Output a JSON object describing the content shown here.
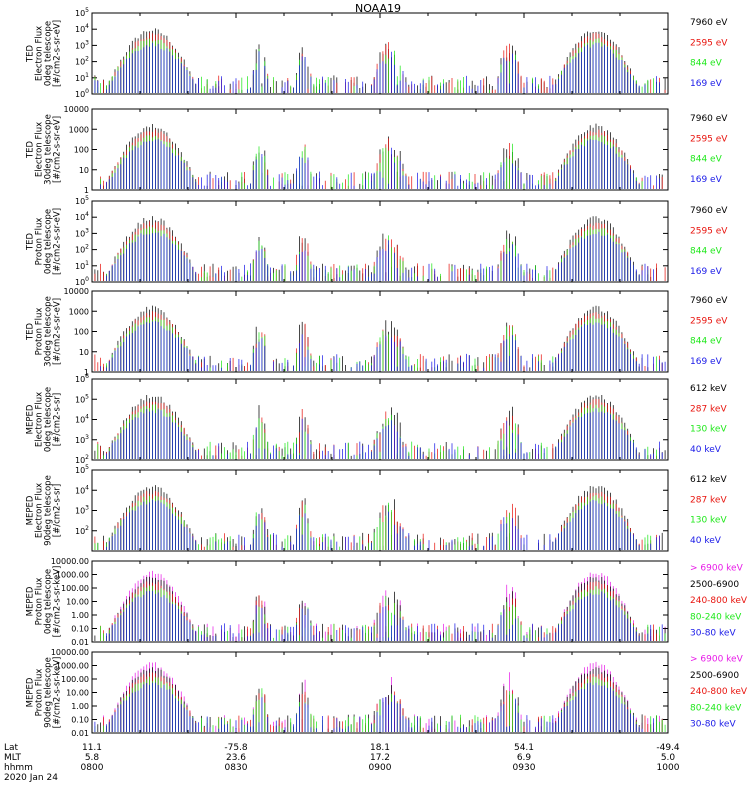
{
  "title": "NOAA19",
  "colors": {
    "black": "#000000",
    "red": "#e8140e",
    "green": "#1ee81a",
    "blue": "#1a1ae8",
    "magenta": "#e81ae8",
    "frame": "#000000"
  },
  "footer": {
    "row_labels": [
      "Lat",
      "MLT",
      "hhmm",
      "2020 Jan 24"
    ],
    "ticks": [
      {
        "time": "0800",
        "lat": "11.1",
        "mlt": "5.8"
      },
      {
        "time": "0830",
        "lat": "-75.8",
        "mlt": "23.6"
      },
      {
        "time": "0900",
        "lat": "18.1",
        "mlt": "17.2"
      },
      {
        "time": "0930",
        "lat": "54.1",
        "mlt": "6.9"
      },
      {
        "time": "1000",
        "lat": "-49.4",
        "mlt": "5.0"
      }
    ]
  },
  "chart_data": [
    {
      "type": "line",
      "ylabel": "TED\nElectron Flux\n0deg telescope\n[#/cm2-s-sr-eV]",
      "scale": "log",
      "ylim": [
        1,
        100000
      ],
      "ytick_labels": [
        "10^0",
        "10^1",
        "10^2",
        "10^3",
        "10^4",
        "10^5"
      ],
      "yticks": [
        1,
        10,
        100,
        1000,
        10000,
        100000
      ],
      "series": [
        {
          "name": "7960 eV",
          "color": "#000000"
        },
        {
          "name": "2595 eV",
          "color": "#e8140e"
        },
        {
          "name": "844 eV",
          "color": "#1ee81a"
        },
        {
          "name": "169 eV",
          "color": "#1a1ae8"
        }
      ]
    },
    {
      "type": "line",
      "ylabel": "TED\nElectron Flux\n30deg telescope\n[#/cm2-s-sr-eV]",
      "scale": "log",
      "ylim": [
        1,
        10000
      ],
      "ytick_labels": [
        "1",
        "10",
        "100",
        "1000",
        "10000"
      ],
      "yticks": [
        1,
        10,
        100,
        1000,
        10000
      ],
      "series": [
        {
          "name": "7960 eV",
          "color": "#000000"
        },
        {
          "name": "2595 eV",
          "color": "#e8140e"
        },
        {
          "name": "844 eV",
          "color": "#1ee81a"
        },
        {
          "name": "169 eV",
          "color": "#1a1ae8"
        }
      ]
    },
    {
      "type": "line",
      "ylabel": "TED\nProton Flux\n0deg telescope\n[#/cm2-s-sr-eV]",
      "scale": "log",
      "ylim": [
        1,
        100000
      ],
      "ytick_labels": [
        "10^0",
        "10^1",
        "10^2",
        "10^3",
        "10^4",
        "10^5"
      ],
      "yticks": [
        1,
        10,
        100,
        1000,
        10000,
        100000
      ],
      "series": [
        {
          "name": "7960 eV",
          "color": "#000000"
        },
        {
          "name": "2595 eV",
          "color": "#e8140e"
        },
        {
          "name": "844 eV",
          "color": "#1ee81a"
        },
        {
          "name": "169 eV",
          "color": "#1a1ae8"
        }
      ]
    },
    {
      "type": "line",
      "ylabel": "TED\nProton Flux\n30deg telescope\n[#/cm2-s-sr-eV]",
      "scale": "log",
      "ylim": [
        1,
        10000
      ],
      "ytick_labels": [
        "1",
        "10",
        "100",
        "1000",
        "10000"
      ],
      "yticks": [
        1,
        10,
        100,
        1000,
        10000
      ],
      "series": [
        {
          "name": "7960 eV",
          "color": "#000000"
        },
        {
          "name": "2595 eV",
          "color": "#e8140e"
        },
        {
          "name": "844 eV",
          "color": "#1ee81a"
        },
        {
          "name": "169 eV",
          "color": "#1a1ae8"
        }
      ]
    },
    {
      "type": "line",
      "ylabel": "MEPED\nElectron Flux\n0deg telescope\n[#/cm2-s-sr]",
      "scale": "log",
      "ylim": [
        100,
        1000000
      ],
      "ytick_labels": [
        "10^2",
        "10^3",
        "10^4",
        "10^5",
        "10^6"
      ],
      "yticks": [
        100,
        1000,
        10000,
        100000,
        1000000
      ],
      "series": [
        {
          "name": "612 keV",
          "color": "#000000"
        },
        {
          "name": "287 keV",
          "color": "#e8140e"
        },
        {
          "name": "130 keV",
          "color": "#1ee81a"
        },
        {
          "name": "40 keV",
          "color": "#1a1ae8"
        }
      ]
    },
    {
      "type": "line",
      "ylabel": "MEPED\nElectron Flux\n90deg telescope\n[#/cm2-s-sr]",
      "scale": "log",
      "ylim": [
        10,
        100000
      ],
      "ytick_labels": [
        "10^2",
        "10^3",
        "10^4",
        "10^5"
      ],
      "yticks": [
        100,
        1000,
        10000,
        100000
      ],
      "series": [
        {
          "name": "612 keV",
          "color": "#000000"
        },
        {
          "name": "287 keV",
          "color": "#e8140e"
        },
        {
          "name": "130 keV",
          "color": "#1ee81a"
        },
        {
          "name": "40 keV",
          "color": "#1a1ae8"
        }
      ]
    },
    {
      "type": "line",
      "ylabel": "MEPED\nProton Flux\n0deg telescope\n[#/cm2-s-sr-keV]",
      "scale": "log",
      "ylim": [
        0.01,
        10000
      ],
      "ytick_labels": [
        "0.01",
        "0.10",
        "1.00",
        "10.00",
        "100.00",
        "1000.00",
        "10000.00"
      ],
      "yticks": [
        0.01,
        0.1,
        1,
        10,
        100,
        1000,
        10000
      ],
      "series": [
        {
          "name": "> 6900 keV",
          "color": "#e81ae8"
        },
        {
          "name": "2500-6900",
          "color": "#000000"
        },
        {
          "name": "240-800 keV",
          "color": "#e8140e"
        },
        {
          "name": "80-240 keV",
          "color": "#1ee81a"
        },
        {
          "name": "30-80 keV",
          "color": "#1a1ae8"
        }
      ]
    },
    {
      "type": "line",
      "ylabel": "MEPED\nProton Flux\n90deg telescope\n[#/cm2-s-sr-keV]",
      "scale": "log",
      "ylim": [
        0.01,
        10000
      ],
      "ytick_labels": [
        "0.01",
        "0.10",
        "1.00",
        "10.00",
        "100.00",
        "1000.00",
        "10000.00"
      ],
      "yticks": [
        0.01,
        0.1,
        1,
        10,
        100,
        1000,
        10000
      ],
      "series": [
        {
          "name": "> 6900 keV",
          "color": "#e81ae8"
        },
        {
          "name": "2500-6900",
          "color": "#000000"
        },
        {
          "name": "240-800 keV",
          "color": "#e8140e"
        },
        {
          "name": "80-240 keV",
          "color": "#1ee81a"
        },
        {
          "name": "30-80 keV",
          "color": "#1a1ae8"
        }
      ]
    }
  ]
}
